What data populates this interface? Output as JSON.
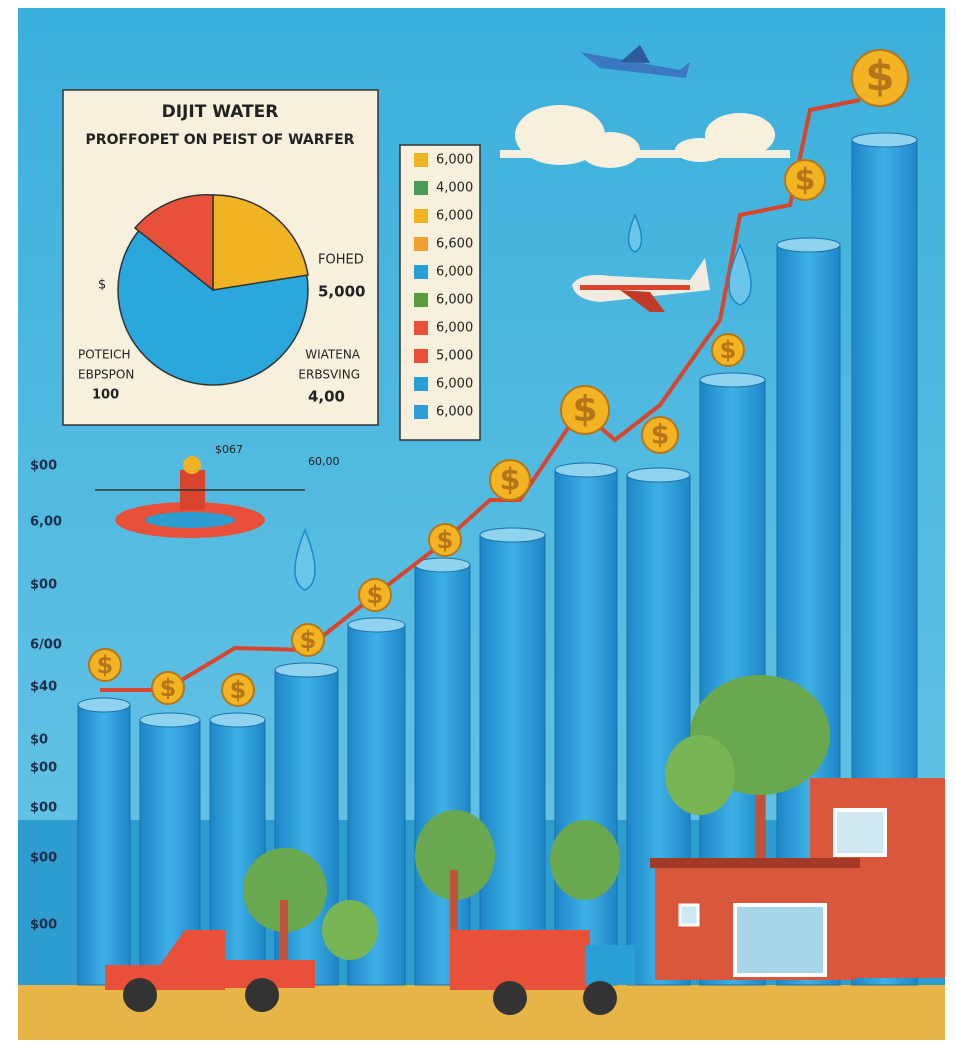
{
  "pie_panel": {
    "title": "DIJIT WATER",
    "subtitle": "PROFFOPET ON PEIST OF WARFER",
    "labels": {
      "left_symbol": "$",
      "right_top": "FOHED",
      "right_value": "5,000",
      "bottom_left_1": "POTEICH",
      "bottom_left_2": "EBPSPON",
      "bottom_left_value": "100",
      "bottom_right_1": "WIATENA",
      "bottom_right_2": "ERBSVING",
      "bottom_right_value": "4,00"
    }
  },
  "legend": {
    "items": [
      {
        "label": "6,000",
        "color": "#f0b323"
      },
      {
        "label": "4,000",
        "color": "#4a9a5a"
      },
      {
        "label": "6,000",
        "color": "#f0b323"
      },
      {
        "label": "6,600",
        "color": "#f0a030"
      },
      {
        "label": "6,000",
        "color": "#2a9fd6"
      },
      {
        "label": "6,000",
        "color": "#5a9a40"
      },
      {
        "label": "6,000",
        "color": "#e8503a"
      },
      {
        "label": "5,000",
        "color": "#e8503a"
      },
      {
        "label": "6,000",
        "color": "#2a9fd6"
      },
      {
        "label": "6,000",
        "color": "#2a9fd6"
      }
    ]
  },
  "axis_labels": [
    "$00",
    "6,00",
    "$00",
    "6/00",
    "$40",
    "$0",
    "$00",
    "$00",
    "$00",
    "$00"
  ],
  "annotations": {
    "float_label": "$067",
    "drip_label": "60,00"
  },
  "coin_symbol": "$"
}
